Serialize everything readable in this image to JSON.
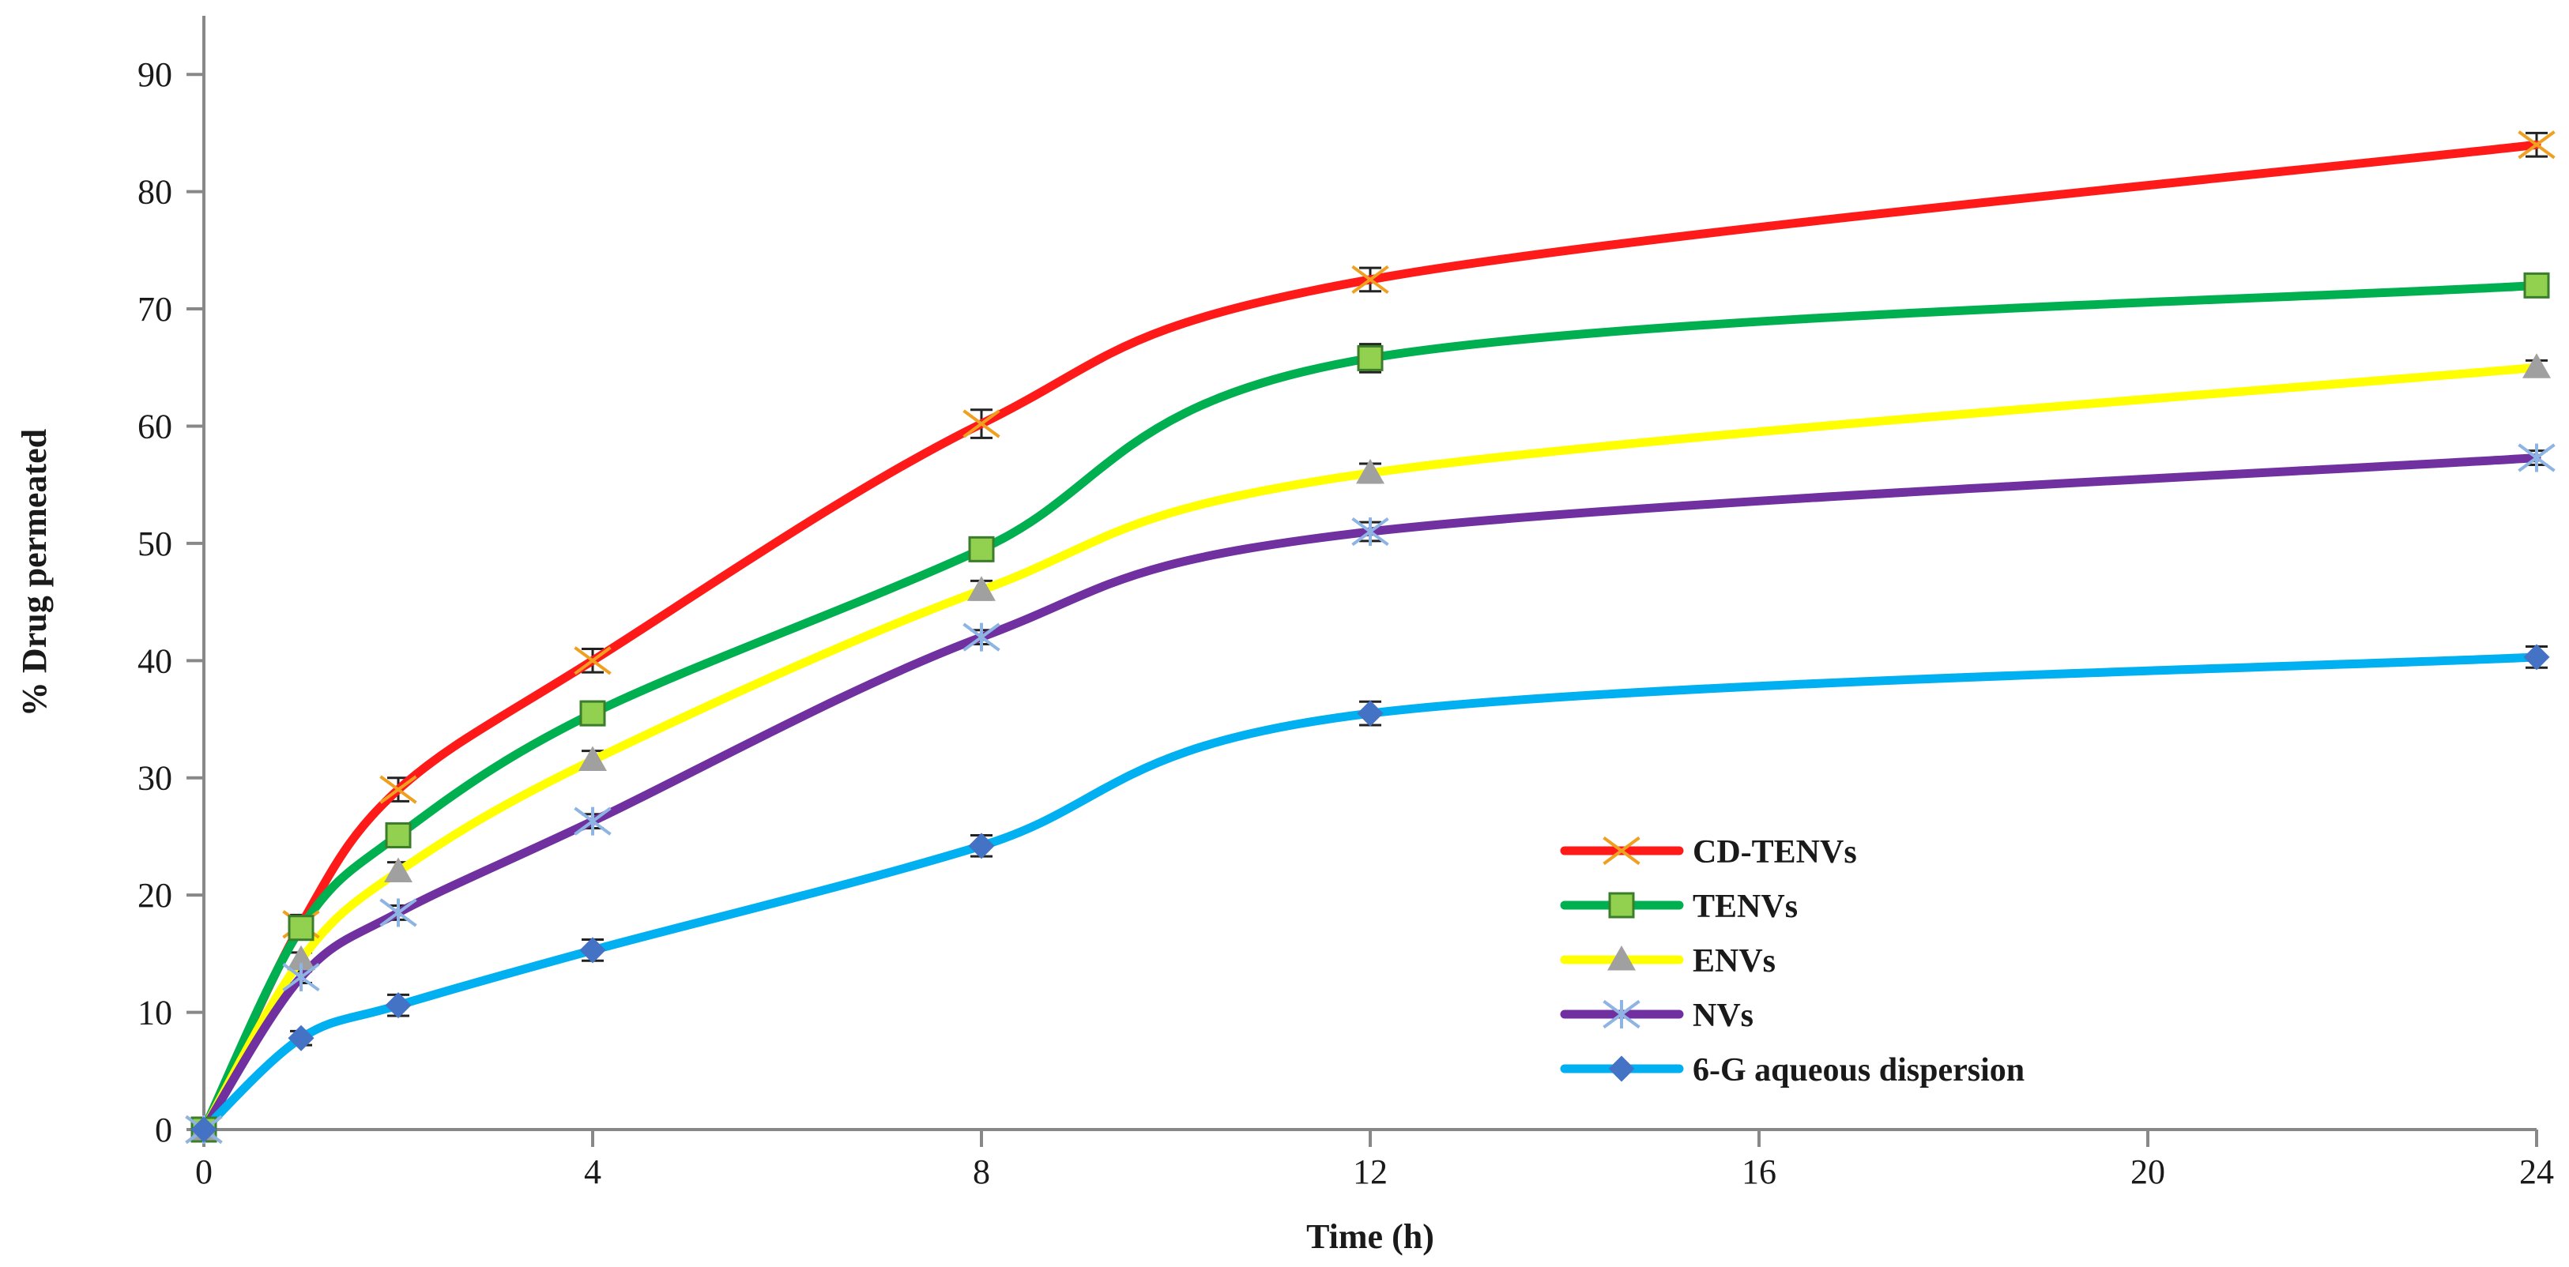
{
  "chart_data": {
    "type": "line",
    "title": "",
    "xlabel": "Time (h)",
    "ylabel": "% Drug permeated",
    "xlim": [
      0,
      24
    ],
    "ylim": [
      0,
      95
    ],
    "x_ticks": [
      0,
      4,
      8,
      12,
      16,
      20,
      24
    ],
    "x_tick_labels": [
      "0",
      "4",
      "8",
      "12",
      "16",
      "20",
      "24"
    ],
    "y_ticks": [
      0,
      10,
      20,
      30,
      40,
      50,
      60,
      70,
      80,
      90
    ],
    "y_tick_labels": [
      "0",
      "10",
      "20",
      "30",
      "40",
      "50",
      "60",
      "70",
      "80",
      "90"
    ],
    "grid": false,
    "legend_position": "bottom-right",
    "x": [
      0,
      1,
      2,
      4,
      8,
      12,
      24
    ],
    "series": [
      {
        "name": "CD-TENVs",
        "color": "#ff1a1a",
        "marker": "x",
        "marker_color": "#f0a020",
        "values": [
          0,
          17.5,
          29.0,
          40.0,
          60.2,
          72.5,
          84.0
        ],
        "errors": [
          0.5,
          0.8,
          1.0,
          1.0,
          1.2,
          1.0,
          1.0
        ]
      },
      {
        "name": "TENVs",
        "color": "#00b050",
        "marker": "square",
        "marker_color": "#92d050",
        "values": [
          0,
          17.2,
          25.1,
          35.5,
          49.5,
          65.8,
          72.0
        ],
        "errors": [
          0.5,
          0.8,
          1.0,
          1.0,
          1.0,
          1.2,
          0.8
        ]
      },
      {
        "name": "ENVs",
        "color": "#ffff00",
        "marker": "triangle",
        "marker_color": "#a0a0a0",
        "values": [
          0,
          14.5,
          22.0,
          31.5,
          46.0,
          56.0,
          65.0
        ],
        "errors": [
          0.5,
          0.6,
          0.8,
          0.8,
          0.8,
          0.8,
          0.6
        ]
      },
      {
        "name": "NVs",
        "color": "#7030a0",
        "marker": "star",
        "marker_color": "#8db4e2",
        "values": [
          0,
          13.0,
          18.5,
          26.3,
          42.0,
          51.0,
          57.3
        ],
        "errors": [
          0.4,
          0.5,
          0.6,
          0.6,
          0.6,
          0.8,
          0.6
        ]
      },
      {
        "name": "6-G aqueous dispersion",
        "color": "#00b0f0",
        "marker": "diamond",
        "marker_color": "#4472c4",
        "values": [
          0,
          7.8,
          10.6,
          15.3,
          24.2,
          35.5,
          40.3
        ],
        "errors": [
          0.4,
          0.6,
          0.9,
          0.9,
          0.9,
          1.0,
          0.9
        ]
      }
    ]
  }
}
